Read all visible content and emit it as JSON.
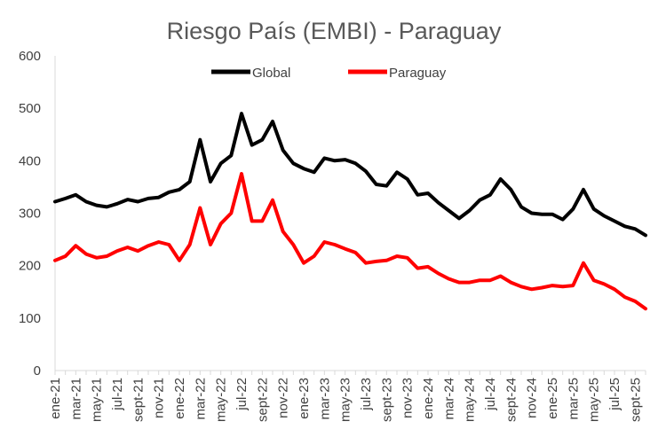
{
  "chart_data": {
    "type": "line",
    "title": "Riesgo País (EMBI) - Paraguay",
    "xlabel": "",
    "ylabel": "",
    "ylim": [
      0,
      600
    ],
    "yticks": [
      0,
      100,
      200,
      300,
      400,
      500,
      600
    ],
    "grid": false,
    "legend_position": "top",
    "x_tick_labels": [
      "ene-21",
      "mar-21",
      "may-21",
      "jul-21",
      "sept-21",
      "nov-21",
      "ene-22",
      "mar-22",
      "may-22",
      "jul-22",
      "sept-22",
      "nov-22",
      "ene-23",
      "mar-23",
      "may-23",
      "jul-23",
      "sept-23",
      "nov-23",
      "ene-24",
      "mar-24",
      "may-24",
      "jul-24",
      "sept-24",
      "nov-24",
      "ene-25",
      "mar-25",
      "may-25",
      "jul-25",
      "sept-25"
    ],
    "x_months": [
      "2021-01",
      "2021-03",
      "2021-05",
      "2021-07",
      "2021-09",
      "2021-11",
      "2022-01",
      "2022-03",
      "2022-05",
      "2022-07",
      "2022-09",
      "2022-11",
      "2023-01",
      "2023-03",
      "2023-05",
      "2023-07",
      "2023-09",
      "2023-11",
      "2024-01",
      "2024-03",
      "2024-05",
      "2024-07",
      "2024-09",
      "2024-11",
      "2025-01",
      "2025-03",
      "2025-05",
      "2025-07",
      "2025-09"
    ],
    "x_range": [
      "2021-01",
      "2025-10"
    ],
    "series": [
      {
        "name": "Global",
        "color": "#000000",
        "points": [
          [
            "2021-01",
            322
          ],
          [
            "2021-02",
            328
          ],
          [
            "2021-03",
            335
          ],
          [
            "2021-04",
            322
          ],
          [
            "2021-05",
            315
          ],
          [
            "2021-06",
            312
          ],
          [
            "2021-07",
            318
          ],
          [
            "2021-08",
            326
          ],
          [
            "2021-09",
            322
          ],
          [
            "2021-10",
            328
          ],
          [
            "2021-11",
            330
          ],
          [
            "2021-12",
            340
          ],
          [
            "2022-01",
            345
          ],
          [
            "2022-02",
            360
          ],
          [
            "2022-03",
            440
          ],
          [
            "2022-04",
            360
          ],
          [
            "2022-05",
            395
          ],
          [
            "2022-06",
            410
          ],
          [
            "2022-07",
            490
          ],
          [
            "2022-08",
            430
          ],
          [
            "2022-09",
            440
          ],
          [
            "2022-10",
            475
          ],
          [
            "2022-11",
            420
          ],
          [
            "2022-12",
            395
          ],
          [
            "2023-01",
            385
          ],
          [
            "2023-02",
            378
          ],
          [
            "2023-03",
            405
          ],
          [
            "2023-04",
            400
          ],
          [
            "2023-05",
            402
          ],
          [
            "2023-06",
            395
          ],
          [
            "2023-07",
            380
          ],
          [
            "2023-08",
            355
          ],
          [
            "2023-09",
            352
          ],
          [
            "2023-10",
            378
          ],
          [
            "2023-11",
            365
          ],
          [
            "2023-12",
            335
          ],
          [
            "2024-01",
            338
          ],
          [
            "2024-02",
            320
          ],
          [
            "2024-03",
            305
          ],
          [
            "2024-04",
            290
          ],
          [
            "2024-05",
            305
          ],
          [
            "2024-06",
            325
          ],
          [
            "2024-07",
            335
          ],
          [
            "2024-08",
            365
          ],
          [
            "2024-09",
            345
          ],
          [
            "2024-10",
            312
          ],
          [
            "2024-11",
            300
          ],
          [
            "2024-12",
            298
          ],
          [
            "2025-01",
            298
          ],
          [
            "2025-02",
            288
          ],
          [
            "2025-03",
            308
          ],
          [
            "2025-04",
            345
          ],
          [
            "2025-05",
            308
          ],
          [
            "2025-06",
            295
          ],
          [
            "2025-07",
            285
          ],
          [
            "2025-08",
            275
          ],
          [
            "2025-09",
            270
          ],
          [
            "2025-10",
            258
          ]
        ]
      },
      {
        "name": "Paraguay",
        "color": "#ff0000",
        "points": [
          [
            "2021-01",
            210
          ],
          [
            "2021-02",
            218
          ],
          [
            "2021-03",
            238
          ],
          [
            "2021-04",
            222
          ],
          [
            "2021-05",
            215
          ],
          [
            "2021-06",
            218
          ],
          [
            "2021-07",
            228
          ],
          [
            "2021-08",
            235
          ],
          [
            "2021-09",
            228
          ],
          [
            "2021-10",
            238
          ],
          [
            "2021-11",
            245
          ],
          [
            "2021-12",
            240
          ],
          [
            "2022-01",
            210
          ],
          [
            "2022-02",
            240
          ],
          [
            "2022-03",
            310
          ],
          [
            "2022-04",
            240
          ],
          [
            "2022-05",
            280
          ],
          [
            "2022-06",
            300
          ],
          [
            "2022-07",
            375
          ],
          [
            "2022-08",
            285
          ],
          [
            "2022-09",
            285
          ],
          [
            "2022-10",
            325
          ],
          [
            "2022-11",
            265
          ],
          [
            "2022-12",
            240
          ],
          [
            "2023-01",
            205
          ],
          [
            "2023-02",
            218
          ],
          [
            "2023-03",
            245
          ],
          [
            "2023-04",
            240
          ],
          [
            "2023-05",
            232
          ],
          [
            "2023-06",
            225
          ],
          [
            "2023-07",
            205
          ],
          [
            "2023-08",
            208
          ],
          [
            "2023-09",
            210
          ],
          [
            "2023-10",
            218
          ],
          [
            "2023-11",
            215
          ],
          [
            "2023-12",
            195
          ],
          [
            "2024-01",
            198
          ],
          [
            "2024-02",
            185
          ],
          [
            "2024-03",
            175
          ],
          [
            "2024-04",
            168
          ],
          [
            "2024-05",
            168
          ],
          [
            "2024-06",
            172
          ],
          [
            "2024-07",
            172
          ],
          [
            "2024-08",
            180
          ],
          [
            "2024-09",
            168
          ],
          [
            "2024-10",
            160
          ],
          [
            "2024-11",
            155
          ],
          [
            "2024-12",
            158
          ],
          [
            "2025-01",
            162
          ],
          [
            "2025-02",
            160
          ],
          [
            "2025-03",
            162
          ],
          [
            "2025-04",
            205
          ],
          [
            "2025-05",
            172
          ],
          [
            "2025-06",
            165
          ],
          [
            "2025-07",
            155
          ],
          [
            "2025-08",
            140
          ],
          [
            "2025-09",
            132
          ],
          [
            "2025-10",
            118
          ]
        ]
      }
    ]
  }
}
